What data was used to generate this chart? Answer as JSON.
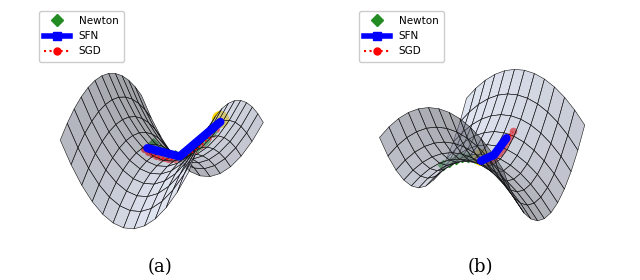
{
  "title_a": "(a)",
  "title_b": "(b)",
  "legend_entries": [
    "Newton",
    "SFN",
    "SGD"
  ],
  "newton_color": "#228B22",
  "sfn_color": "#0000FF",
  "sgd_color": "#FF0000",
  "start_color": "#FFD700",
  "surface_facecolor": "#C8D0E8",
  "surface_edgecolor": "#111111",
  "surface_alpha": 0.55
}
